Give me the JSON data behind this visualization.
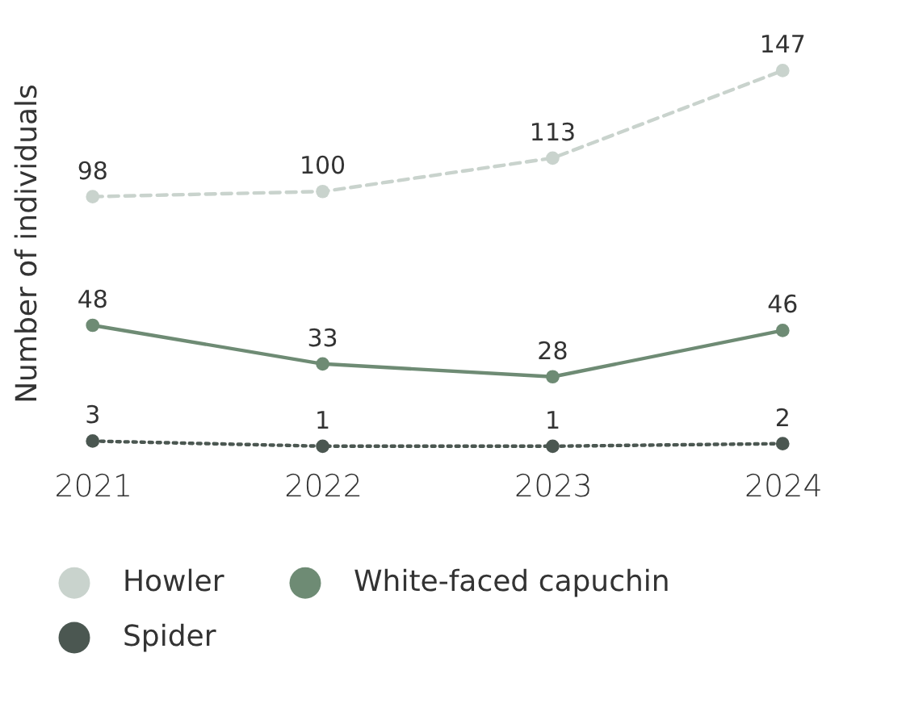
{
  "chart_data": {
    "type": "line",
    "ylabel": "Number of individuals",
    "categories": [
      "2021",
      "2022",
      "2023",
      "2024"
    ],
    "series": [
      {
        "name": "Howler",
        "color": "#c9d3cd",
        "line_style": "dashed",
        "values": [
          98,
          100,
          113,
          147
        ]
      },
      {
        "name": "White-faced capuchin",
        "color": "#6e8b74",
        "line_style": "solid",
        "values": [
          48,
          33,
          28,
          46
        ]
      },
      {
        "name": "Spider",
        "color": "#4b5751",
        "line_style": "dotted",
        "values": [
          3,
          1,
          1,
          2
        ]
      }
    ],
    "tick_labels": "x",
    "data_labels": true,
    "marker": "circle",
    "legend": "bottom",
    "grid": false
  }
}
